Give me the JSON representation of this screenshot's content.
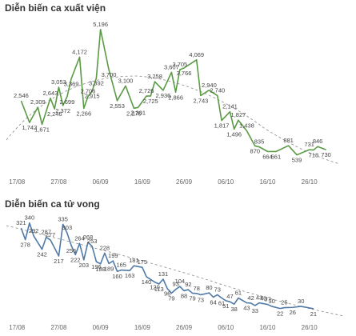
{
  "chart_data": [
    {
      "type": "line",
      "title": "Diễn biến ca xuất viện",
      "color": "#5a9a45",
      "x": [
        1,
        3,
        5,
        6,
        8,
        9,
        10,
        11,
        12,
        13,
        15,
        16,
        17,
        18,
        19,
        20,
        22,
        24,
        26,
        28,
        29,
        31,
        32,
        33,
        35,
        37,
        38,
        39,
        40,
        43,
        44,
        46,
        48,
        49,
        51,
        52,
        53,
        55,
        57,
        58,
        60,
        62,
        65,
        67,
        70,
        71,
        72,
        74
      ],
      "values": [
        2546,
        1742,
        2309,
        1671,
        2643,
        2246,
        3053,
        2372,
        2699,
        3369,
        4172,
        2266,
        2706,
        2915,
        3392,
        5196,
        3700,
        2553,
        3100,
        2270,
        2301,
        2726,
        2725,
        3258,
        2936,
        3607,
        2866,
        3705,
        3766,
        4069,
        2743,
        2940,
        2740,
        1817,
        2141,
        1496,
        1827,
        1438,
        870,
        835,
        664,
        661,
        881,
        539,
        731,
        718,
        846,
        730
      ],
      "value_labels": [
        "2,546",
        "1,742",
        "2,309",
        "1,671",
        "2,643",
        "2,246",
        "3,053",
        "2,372",
        "2,699",
        "3,369",
        "4,172",
        "2,266",
        "2,706",
        "2,915",
        "3,392",
        "5,196",
        "3,700",
        "2,553",
        "3,100",
        "2,270",
        "2,301",
        "2,726",
        "2,725",
        "3,258",
        "2,936",
        "3,607",
        "2,866",
        "3,705",
        "3,766",
        "4,069",
        "2,743",
        "2,940",
        "2,740",
        "1,817",
        "2,141",
        "1,496",
        "1,827",
        "1,438",
        "870",
        "835",
        "664",
        "661",
        "881",
        "539",
        "731",
        "718",
        "846",
        "730"
      ],
      "xlim": [
        -1,
        76
      ],
      "xticks": [
        {
          "value": 0,
          "label": "17/08"
        },
        {
          "value": 10,
          "label": "27/08"
        },
        {
          "value": 20,
          "label": "06/09"
        },
        {
          "value": 30,
          "label": "16/09"
        },
        {
          "value": 40,
          "label": "26/09"
        },
        {
          "value": 50,
          "label": "06/10"
        },
        {
          "value": 60,
          "label": "16/10"
        },
        {
          "value": 70,
          "label": "26/10"
        }
      ],
      "ylim": [
        200,
        5400
      ]
    },
    {
      "type": "line",
      "title": "Diễn biến ca tử vong",
      "color": "#4f7aa8",
      "x": [
        1,
        2,
        3,
        4,
        6,
        7,
        8,
        10,
        11,
        12,
        13,
        14,
        15,
        16,
        17,
        18,
        19,
        20,
        21,
        22,
        23,
        24,
        25,
        27,
        28,
        30,
        31,
        33,
        34,
        35,
        36,
        37,
        38,
        39,
        40,
        41,
        42,
        43,
        44,
        46,
        47,
        48,
        49,
        50,
        51,
        52,
        53,
        55,
        56,
        57,
        58,
        59,
        60,
        61,
        63,
        64,
        66,
        68,
        71
      ],
      "values": [
        321,
        278,
        340,
        292,
        242,
        287,
        277,
        217,
        335,
        303,
        256,
        222,
        264,
        203,
        268,
        253,
        196,
        188,
        228,
        189,
        199,
        160,
        165,
        163,
        181,
        175,
        140,
        120,
        113,
        131,
        96,
        79,
        93,
        104,
        88,
        92,
        79,
        78,
        73,
        80,
        64,
        73,
        61,
        51,
        47,
        38,
        61,
        43,
        42,
        33,
        43,
        40,
        37,
        30,
        22,
        25,
        26,
        30,
        21
      ],
      "xlim": [
        -1,
        76
      ],
      "xticks": [
        {
          "value": 0,
          "label": "17/08"
        },
        {
          "value": 10,
          "label": "27/08"
        },
        {
          "value": 20,
          "label": "06/09"
        },
        {
          "value": 30,
          "label": "16/09"
        },
        {
          "value": 40,
          "label": "26/09"
        },
        {
          "value": 50,
          "label": "06/10"
        },
        {
          "value": 60,
          "label": "16/10"
        },
        {
          "value": 70,
          "label": "26/10"
        }
      ],
      "ylim": [
        0,
        360
      ]
    }
  ]
}
